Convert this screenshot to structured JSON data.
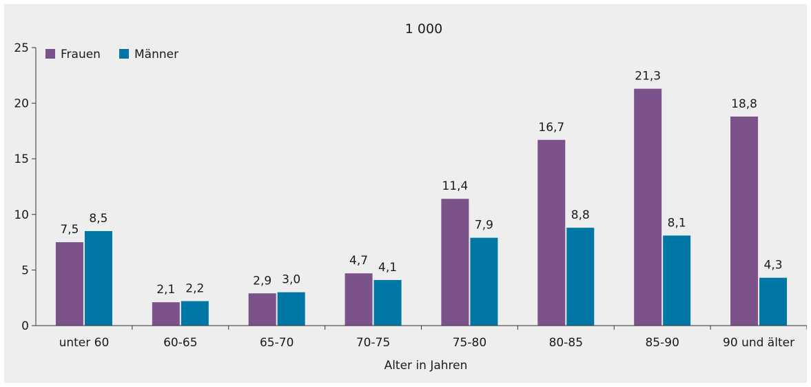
{
  "chart_data": {
    "type": "bar",
    "title": "1 000",
    "xlabel": "Alter in Jahren",
    "ylabel": "",
    "ylim": [
      0,
      25
    ],
    "yticks": [
      0,
      5,
      10,
      15,
      20,
      25
    ],
    "grid": false,
    "legend_position": "top-left",
    "categories": [
      "unter 60",
      "60-65",
      "65-70",
      "70-75",
      "75-80",
      "80-85",
      "85-90",
      "90 und älter"
    ],
    "series": [
      {
        "name": "Frauen",
        "color": "#7b5289",
        "values": [
          7.5,
          2.1,
          2.9,
          4.7,
          11.4,
          16.7,
          21.3,
          18.8
        ],
        "labels": [
          "7,5",
          "2,1",
          "2,9",
          "4,7",
          "11,4",
          "16,7",
          "21,3",
          "18,8"
        ]
      },
      {
        "name": "Männer",
        "color": "#0077a4",
        "values": [
          8.5,
          2.2,
          3.0,
          4.1,
          7.9,
          8.8,
          8.1,
          4.3
        ],
        "labels": [
          "8,5",
          "2,2",
          "3,0",
          "4,1",
          "7,9",
          "8,8",
          "8,1",
          "4,3"
        ]
      }
    ]
  }
}
